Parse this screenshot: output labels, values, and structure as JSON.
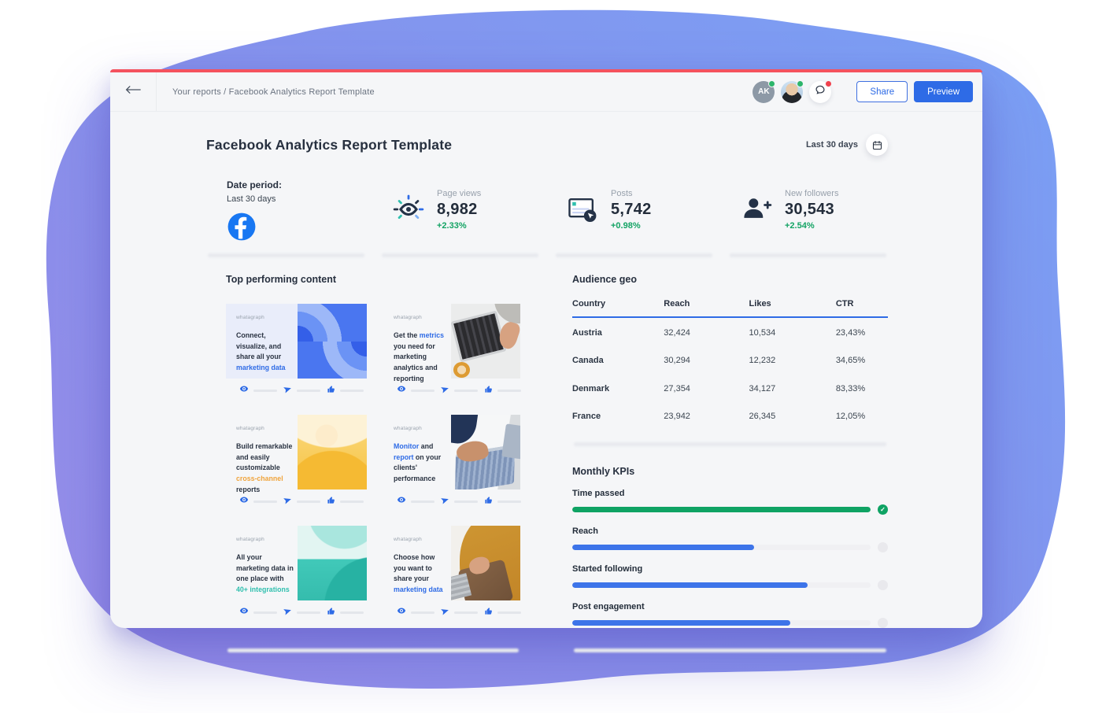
{
  "topbar": {
    "breadcrumb": "Your reports / Facebook Analytics Report Template",
    "avatars": [
      {
        "initials": "AK",
        "status": "online"
      },
      {
        "type": "photo",
        "status": "online"
      }
    ],
    "chat_has_notification": true,
    "share_label": "Share",
    "preview_label": "Preview"
  },
  "header": {
    "title": "Facebook Analytics Report Template",
    "date_range": "Last 30 days"
  },
  "stats": {
    "date_card": {
      "label": "Date period:",
      "value": "Last 30 days",
      "icon": "facebook-logo"
    },
    "metrics": [
      {
        "icon": "eye-icon",
        "label": "Page views",
        "value": "8,982",
        "delta": "+2.33%"
      },
      {
        "icon": "post-click-icon",
        "label": "Posts",
        "value": "5,742",
        "delta": "+0.98%"
      },
      {
        "icon": "add-follower-icon",
        "label": "New followers",
        "value": "30,543",
        "delta": "+2.54%"
      }
    ]
  },
  "content": {
    "title": "Top performing content",
    "cards": [
      {
        "brand": "whatagraph",
        "art": "pattern-blue",
        "segments": [
          {
            "text": "Connect, visualize, and share all your "
          },
          {
            "text": "marketing data",
            "color": "blue"
          }
        ]
      },
      {
        "brand": "whatagraph",
        "art": "photo-laptop-top",
        "segments": [
          {
            "text": "Get the "
          },
          {
            "text": "metrics",
            "color": "blue"
          },
          {
            "text": " you need for marketing analytics and reporting"
          }
        ]
      },
      {
        "brand": "whatagraph",
        "art": "pattern-yellow",
        "segments": [
          {
            "text": "Build remarkable and easily customizable "
          },
          {
            "text": "cross-channel",
            "color": "orange"
          },
          {
            "text": " reports"
          }
        ]
      },
      {
        "brand": "whatagraph",
        "art": "photo-laptop-hands",
        "segments": [
          {
            "text": "Monitor",
            "color": "blue"
          },
          {
            "text": " and "
          },
          {
            "text": "report",
            "color": "blue"
          },
          {
            "text": " on your clients' performance"
          }
        ]
      },
      {
        "brand": "whatagraph",
        "art": "pattern-teal",
        "segments": [
          {
            "text": "All your marketing data in one place with "
          },
          {
            "text": "40+ integrations",
            "color": "teal"
          }
        ]
      },
      {
        "brand": "whatagraph",
        "art": "photo-sweater",
        "segments": [
          {
            "text": "Choose how you want to share your "
          },
          {
            "text": "marketing data",
            "color": "blue"
          }
        ]
      }
    ],
    "card_stat_icons": [
      "eye-icon",
      "send-icon",
      "like-icon"
    ]
  },
  "audience_geo": {
    "title": "Audience geo",
    "columns": [
      "Country",
      "Reach",
      "Likes",
      "CTR"
    ],
    "rows": [
      [
        "Austria",
        "32,424",
        "10,534",
        "23,43%"
      ],
      [
        "Canada",
        "30,294",
        "12,232",
        "34,65%"
      ],
      [
        "Denmark",
        "27,354",
        "34,127",
        "83,33%"
      ],
      [
        "France",
        "23,942",
        "26,345",
        "12,05%"
      ]
    ]
  },
  "monthly_kpis": {
    "title": "Monthly KPIs",
    "items": [
      {
        "label": "Time passed",
        "percent": 100,
        "color": "#0fa364",
        "complete": true
      },
      {
        "label": "Reach",
        "percent": 61,
        "color": "#3d74e9",
        "complete": false
      },
      {
        "label": "Started following",
        "percent": 79,
        "color": "#3d74e9",
        "complete": false
      },
      {
        "label": "Post engagement",
        "percent": 73,
        "color": "#3d74e9",
        "complete": false
      }
    ]
  },
  "colors": {
    "accent_blue": "#2e6be6",
    "green": "#13a364",
    "top_line_red": "#f4525e",
    "orange": "#f0a43c",
    "teal": "#2fbfae",
    "facebook_blue": "#1877F2",
    "blob_purple": "#968de9",
    "blob_blue": "#7b9ff4"
  }
}
